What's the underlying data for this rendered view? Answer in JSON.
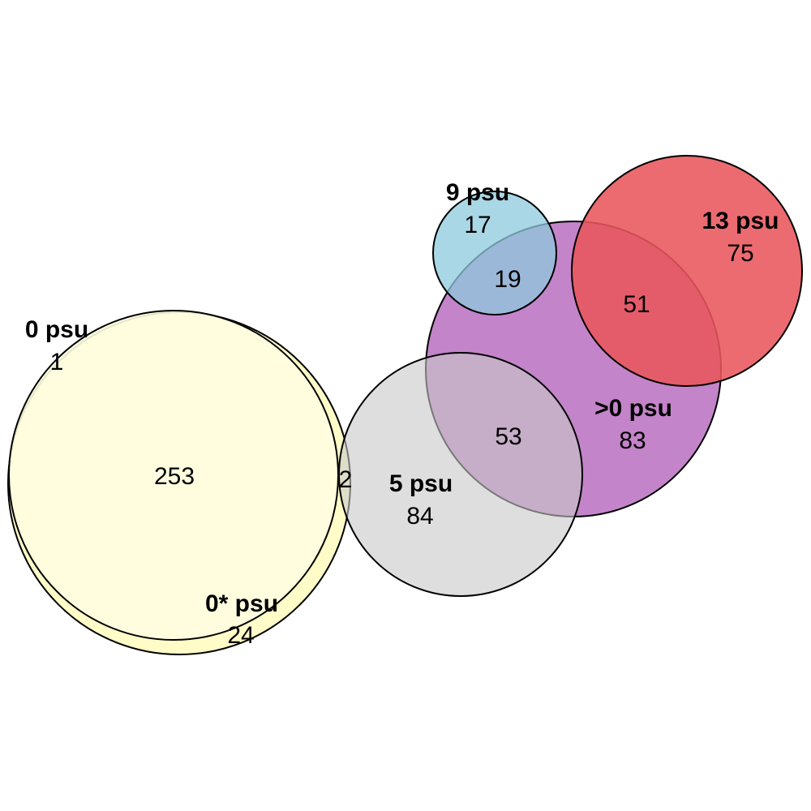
{
  "sets": {
    "psu0": {
      "label": "0 psu",
      "color": "#fffde0"
    },
    "psu0star": {
      "label": "0* psu",
      "color": "#fffcc8"
    },
    "psu5": {
      "label": "5 psu",
      "color": "#c8c8c8"
    },
    "psu_gt0": {
      "label": ">0 psu",
      "color": "#b86ebf"
    },
    "psu9": {
      "label": "9 psu",
      "color": "#8ecadc"
    },
    "psu13": {
      "label": "13 psu",
      "color": "#e8575c"
    }
  },
  "counts": {
    "psu0_only": "1",
    "psu0_and_psu0star": "253",
    "psu0star_only": "24",
    "psu0_psu0star_psu5": "2",
    "psu5_only": "84",
    "psu5_and_gt0": "53",
    "gt0_only": "83",
    "psu9_only": "17",
    "psu9_and_gt0": "19",
    "psu13_only": "75",
    "psu13_and_gt0": "51"
  }
}
